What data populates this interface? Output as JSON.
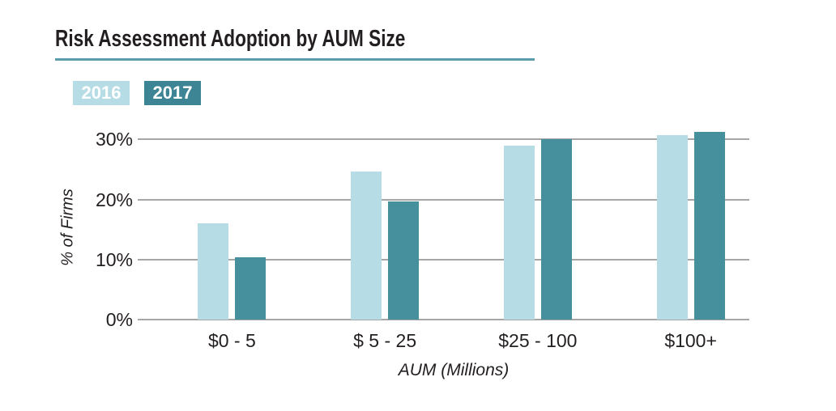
{
  "chart_data": {
    "type": "bar",
    "title": "Risk Assessment Adoption by AUM Size",
    "categories": [
      "$0 - 5",
      "$ 5 - 25",
      "$25 - 100",
      "$100+"
    ],
    "series": [
      {
        "name": "2016",
        "color": "#b6dce6",
        "values": [
          16.0,
          24.7,
          29.0,
          30.7
        ]
      },
      {
        "name": "2017",
        "color": "#45909c",
        "values": [
          10.4,
          19.7,
          30.1,
          31.3
        ]
      }
    ],
    "xlabel": "AUM (Millions)",
    "ylabel": "% of Firms",
    "ylim": [
      0,
      33
    ],
    "yticks": [
      {
        "value": 0,
        "label": "0%"
      },
      {
        "value": 10,
        "label": "10%"
      },
      {
        "value": 20,
        "label": "20%"
      },
      {
        "value": 30,
        "label": "30%"
      }
    ],
    "grid": true,
    "legend_position": "top-left"
  },
  "legend": {
    "items": [
      {
        "label": "2016",
        "color": "#b6dce6"
      },
      {
        "label": "2017",
        "color": "#3d8494"
      }
    ]
  },
  "colors": {
    "title_text": "#231f20",
    "title_underline": "#5b9dab",
    "gridline": "#a6a6a6",
    "legend_text": "#ffffff",
    "background": "#ffffff"
  }
}
